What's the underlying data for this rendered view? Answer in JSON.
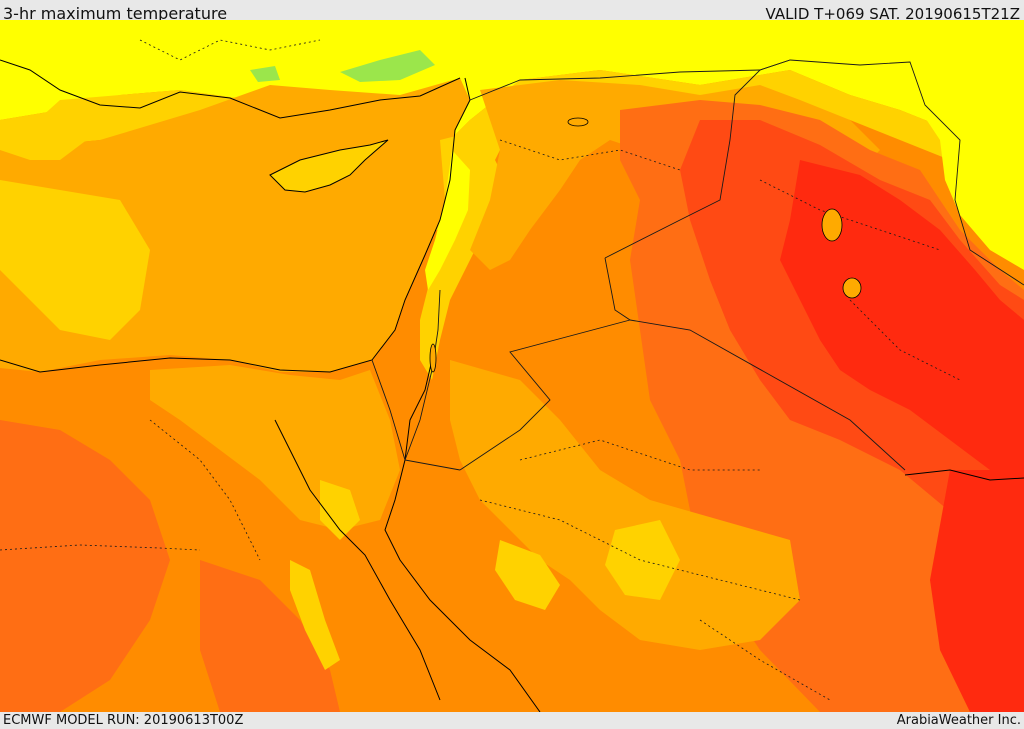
{
  "header": {
    "title": "3-hr maximum temperature",
    "valid_time": "VALID T+069 SAT. 20190615T21Z"
  },
  "footer": {
    "model_run": "ECMWF MODEL RUN: 20190613T00Z",
    "credit": "ArabiaWeather Inc."
  },
  "map": {
    "field": "3-hr maximum temperature",
    "region": "Eastern Mediterranean and Middle East",
    "colors": {
      "green": "#9be64b",
      "yellow": "#ffff00",
      "gold": "#ffd200",
      "amber": "#ffaa00",
      "orange": "#ff8c00",
      "dark_orange": "#ff6e14",
      "red_orange": "#ff4a14",
      "red": "#ff2a0f",
      "coastline": "#000000",
      "border": "#1a1a1a"
    }
  }
}
